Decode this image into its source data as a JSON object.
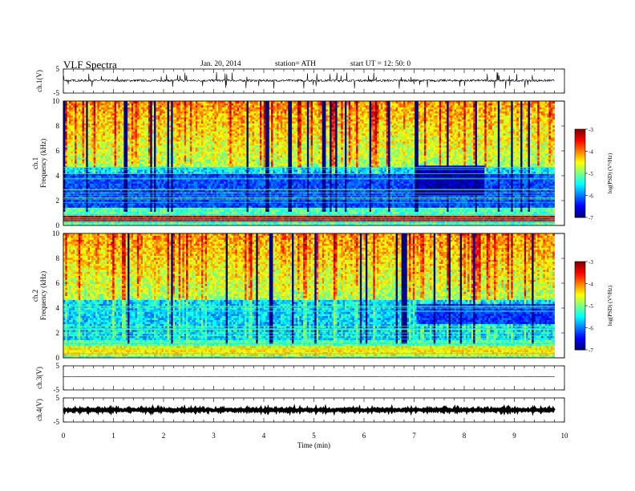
{
  "header": {
    "title": "VLF  Spectra",
    "date": "Jan. 20, 2014",
    "station": "station= ATH",
    "start": "start  UT =   12: 50: 0"
  },
  "chart_data": [
    {
      "type": "line",
      "title": "",
      "ylabel": "ch.1(V)",
      "ylim": [
        -5,
        5
      ],
      "yticks": [
        "5",
        "-5"
      ],
      "series": [
        {
          "baseline": 0.2,
          "noise": 0.45,
          "spike_count": 60,
          "spike_max": 3.5
        }
      ],
      "color": "#000000"
    },
    {
      "type": "heatmap",
      "ylabel": "ch.1\nFrequency  (kHz)",
      "ylim": [
        0,
        10
      ],
      "yticks": [
        "0",
        "2",
        "4",
        "6",
        "8",
        "10"
      ],
      "xlim": [
        0,
        10
      ],
      "data_range_min": [
        0,
        9.8
      ],
      "colorbar": {
        "label": "log(PSD) (V²/Hz)",
        "ticks": [
          "-3",
          "-4",
          "-5",
          "-6",
          "-7"
        ],
        "range": [
          -7,
          -3
        ]
      },
      "features": [
        {
          "desc": "persistent strong band",
          "freq_khz": [
            0.3,
            0.8
          ],
          "level": -3.3
        },
        {
          "desc": "quiet blue band",
          "freq_khz": [
            1.5,
            4.2
          ],
          "level": -6.2
        },
        {
          "desc": "quiet region after 7.05 min",
          "time_min": [
            7.05,
            8.4
          ],
          "freq_khz": [
            2.5,
            4.8
          ],
          "level": -6.8
        }
      ]
    },
    {
      "type": "heatmap",
      "ylabel": "ch.2\nFrequency  (kHz)",
      "ylim": [
        0,
        10
      ],
      "yticks": [
        "0",
        "2",
        "4",
        "6",
        "8",
        "10"
      ],
      "xlim": [
        0,
        10
      ],
      "data_range_min": [
        0,
        9.8
      ],
      "colorbar": {
        "label": "log(PSD) (V²/Hz)",
        "ticks": [
          "-3",
          "-4",
          "-5",
          "-6",
          "-7"
        ],
        "range": [
          -7,
          -3
        ]
      },
      "features": [
        {
          "desc": "persistent band",
          "freq_khz": [
            0.2,
            1.0
          ],
          "level": -4.4
        },
        {
          "desc": "quiet region after 7.05 min",
          "time_min": [
            7.05,
            9.8
          ],
          "freq_khz": [
            2.8,
            4.4
          ],
          "level": -6.3
        }
      ]
    },
    {
      "type": "line",
      "ylabel": "ch.3(V)",
      "ylim": [
        -5,
        5
      ],
      "yticks": [
        "5",
        "-5"
      ],
      "series": [
        {
          "baseline": 0.5,
          "noise": 0.05
        }
      ],
      "color": "#000000"
    },
    {
      "type": "line",
      "ylabel": "ch.4(V)",
      "ylim": [
        -5,
        5
      ],
      "yticks": [
        "5",
        "-5"
      ],
      "series": [
        {
          "baseline": 0.0,
          "noise": 0.35
        }
      ],
      "color": "#000000"
    }
  ],
  "xaxis": {
    "label": "Time  (min)",
    "ticks": [
      "0",
      "1",
      "2",
      "3",
      "4",
      "5",
      "6",
      "7",
      "8",
      "9",
      "10"
    ],
    "xlim": [
      0,
      10
    ]
  }
}
